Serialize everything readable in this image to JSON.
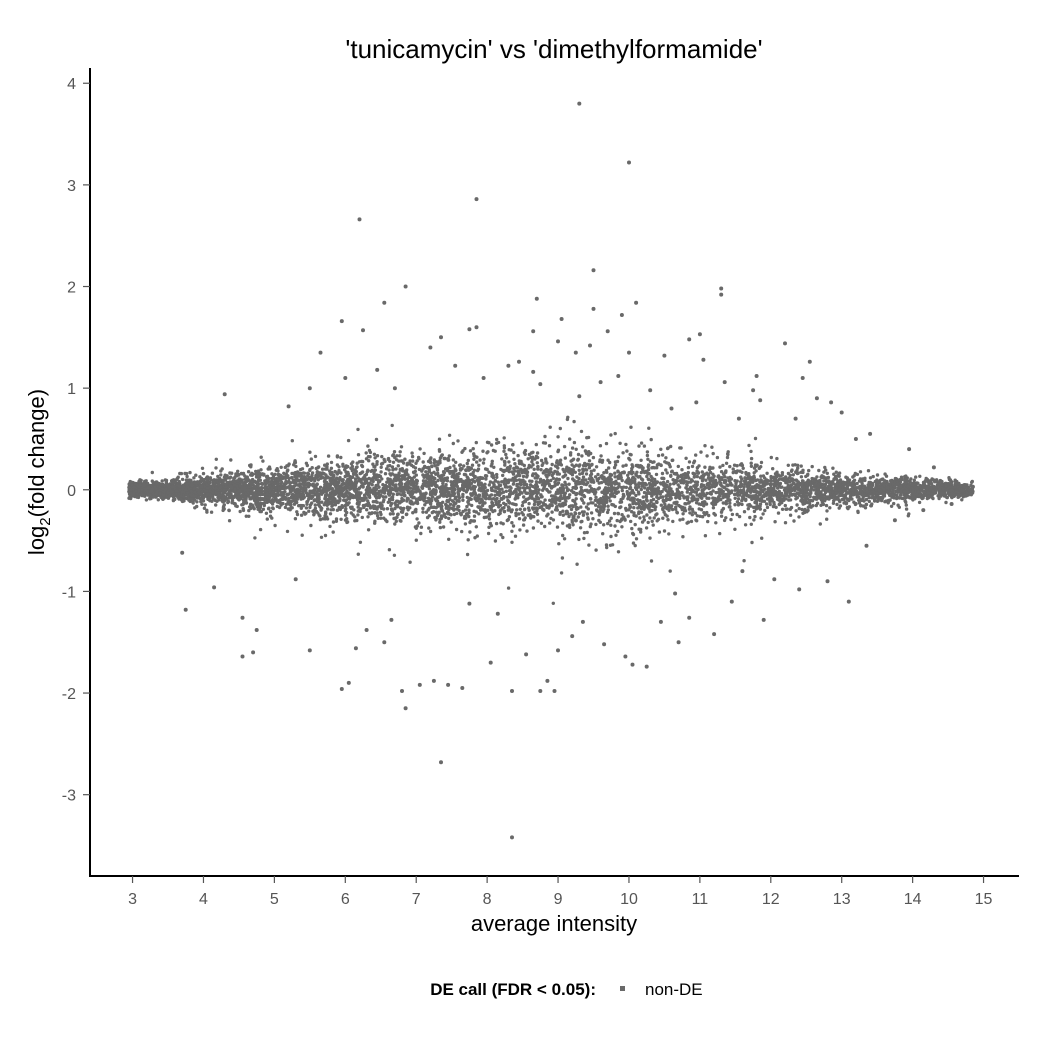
{
  "chart_data": {
    "type": "scatter",
    "title": "'tunicamycin' vs 'dimethylformamide'",
    "xlabel": "average intensity",
    "ylabel": {
      "prefix": "log",
      "subscript": "2",
      "suffix": "(fold change)"
    },
    "xlim": [
      2.4,
      15.5
    ],
    "ylim": [
      -3.8,
      4.15
    ],
    "x_ticks": [
      3,
      4,
      5,
      6,
      7,
      8,
      9,
      10,
      11,
      12,
      13,
      14,
      15
    ],
    "y_ticks": [
      -3,
      -2,
      -1,
      0,
      1,
      2,
      3,
      4
    ],
    "grid": false,
    "point_color": "#696969",
    "legend": {
      "position": "bottom",
      "title": "DE call (FDR < 0.05):",
      "entries": [
        {
          "label": "non-DE",
          "color": "#696969"
        }
      ]
    },
    "series": [
      {
        "name": "non-DE",
        "points": [
          [
            9.3,
            3.8
          ],
          [
            10.0,
            3.22
          ],
          [
            7.85,
            2.86
          ],
          [
            6.2,
            2.66
          ],
          [
            9.5,
            2.16
          ],
          [
            6.85,
            2.0
          ],
          [
            11.3,
            1.98
          ],
          [
            11.3,
            1.92
          ],
          [
            8.7,
            1.88
          ],
          [
            6.55,
            1.84
          ],
          [
            10.1,
            1.84
          ],
          [
            9.5,
            1.78
          ],
          [
            9.9,
            1.72
          ],
          [
            9.05,
            1.68
          ],
          [
            5.95,
            1.66
          ],
          [
            7.85,
            1.6
          ],
          [
            7.75,
            1.58
          ],
          [
            6.25,
            1.57
          ],
          [
            9.7,
            1.56
          ],
          [
            8.65,
            1.56
          ],
          [
            11.0,
            1.53
          ],
          [
            7.35,
            1.5
          ],
          [
            10.85,
            1.48
          ],
          [
            9.0,
            1.46
          ],
          [
            9.45,
            1.42
          ],
          [
            7.2,
            1.4
          ],
          [
            12.2,
            1.44
          ],
          [
            9.25,
            1.35
          ],
          [
            5.65,
            1.35
          ],
          [
            10.0,
            1.35
          ],
          [
            10.5,
            1.32
          ],
          [
            11.05,
            1.28
          ],
          [
            12.55,
            1.26
          ],
          [
            8.45,
            1.26
          ],
          [
            8.3,
            1.22
          ],
          [
            6.45,
            1.18
          ],
          [
            8.65,
            1.16
          ],
          [
            9.85,
            1.12
          ],
          [
            11.8,
            1.12
          ],
          [
            12.45,
            1.1
          ],
          [
            6.0,
            1.1
          ],
          [
            7.95,
            1.1
          ],
          [
            9.6,
            1.06
          ],
          [
            11.35,
            1.06
          ],
          [
            8.75,
            1.04
          ],
          [
            5.5,
            1.0
          ],
          [
            6.7,
            1.0
          ],
          [
            10.3,
            0.98
          ],
          [
            11.75,
            0.98
          ],
          [
            4.3,
            0.94
          ],
          [
            12.65,
            0.9
          ],
          [
            11.85,
            0.88
          ],
          [
            10.95,
            0.86
          ],
          [
            12.85,
            0.86
          ],
          [
            13.0,
            0.76
          ],
          [
            11.55,
            0.7
          ],
          [
            13.4,
            0.55
          ],
          [
            13.95,
            0.4
          ],
          [
            14.3,
            0.22
          ],
          [
            14.85,
            0.03
          ],
          [
            14.55,
            -0.14
          ],
          [
            14.15,
            -0.2
          ],
          [
            13.1,
            -1.1
          ],
          [
            12.4,
            -0.98
          ],
          [
            12.05,
            -0.88
          ],
          [
            11.45,
            -1.1
          ],
          [
            11.2,
            -1.42
          ],
          [
            10.85,
            -1.26
          ],
          [
            10.65,
            -1.02
          ],
          [
            10.25,
            -1.74
          ],
          [
            10.05,
            -1.72
          ],
          [
            9.95,
            -1.64
          ],
          [
            9.65,
            -1.52
          ],
          [
            9.2,
            -1.44
          ],
          [
            9.0,
            -1.58
          ],
          [
            8.95,
            -1.98
          ],
          [
            8.85,
            -1.88
          ],
          [
            8.75,
            -1.98
          ],
          [
            8.55,
            -1.62
          ],
          [
            8.35,
            -1.98
          ],
          [
            8.35,
            -3.42
          ],
          [
            7.35,
            -2.68
          ],
          [
            7.65,
            -1.95
          ],
          [
            7.45,
            -1.92
          ],
          [
            7.25,
            -1.88
          ],
          [
            7.05,
            -1.92
          ],
          [
            6.85,
            -2.15
          ],
          [
            6.8,
            -1.98
          ],
          [
            6.05,
            -1.9
          ],
          [
            5.95,
            -1.96
          ],
          [
            6.15,
            -1.56
          ],
          [
            5.5,
            -1.58
          ],
          [
            4.55,
            -1.64
          ],
          [
            4.7,
            -1.6
          ],
          [
            4.75,
            -1.38
          ],
          [
            4.55,
            -1.26
          ],
          [
            3.75,
            -1.18
          ],
          [
            6.3,
            -1.38
          ],
          [
            6.65,
            -1.28
          ],
          [
            7.75,
            -1.12
          ],
          [
            8.15,
            -1.22
          ],
          [
            10.7,
            -1.5
          ],
          [
            11.9,
            -1.28
          ],
          [
            12.8,
            -0.9
          ],
          [
            4.15,
            -0.96
          ],
          [
            3.7,
            -0.62
          ],
          [
            5.3,
            -0.88
          ],
          [
            6.55,
            -1.5
          ],
          [
            8.05,
            -1.7
          ],
          [
            9.35,
            -1.3
          ],
          [
            10.45,
            -1.3
          ],
          [
            11.6,
            -0.8
          ],
          [
            13.35,
            -0.55
          ],
          [
            13.75,
            -0.3
          ],
          [
            5.2,
            0.82
          ],
          [
            7.55,
            1.22
          ],
          [
            9.3,
            0.92
          ],
          [
            10.6,
            0.8
          ],
          [
            12.35,
            0.7
          ],
          [
            13.2,
            0.5
          ]
        ]
      }
    ]
  }
}
